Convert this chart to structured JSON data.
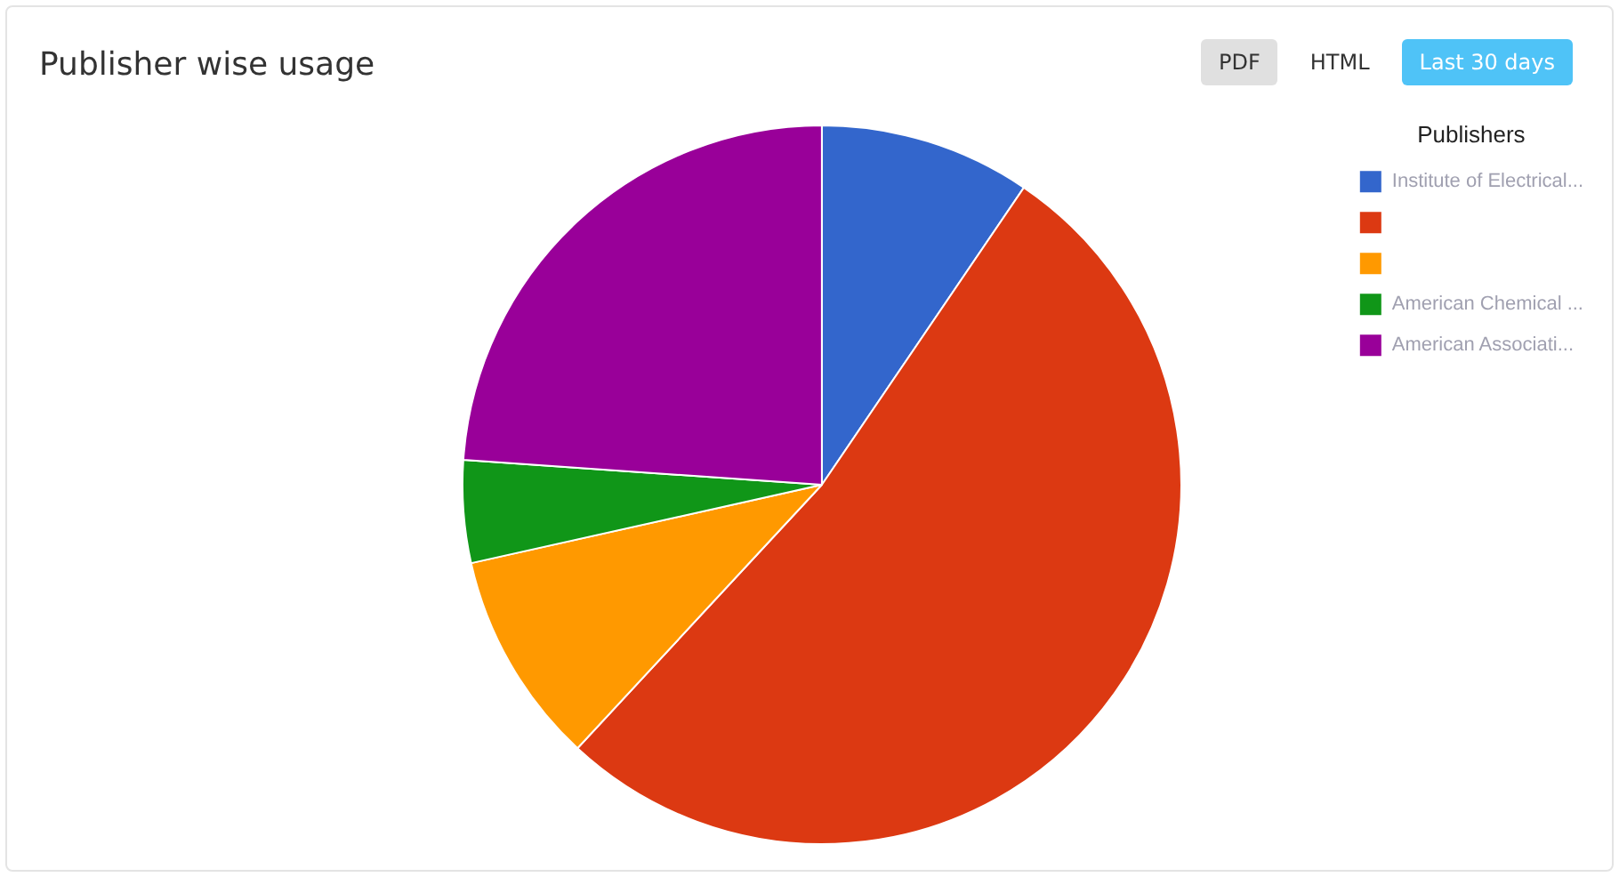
{
  "chart_data": {
    "type": "pie",
    "title": "Publisher wise usage",
    "legend_title": "Publishers",
    "categories": [
      "Institute of Electrical...",
      null,
      null,
      "American Chemical ...",
      "American Associati..."
    ],
    "values": [
      9.5,
      52.4,
      9.6,
      4.6,
      23.9
    ],
    "colors": [
      "#3366cc",
      "#dc3912",
      "#ff9900",
      "#109618",
      "#990099"
    ],
    "legend": "top right",
    "annotations": [
      "PDF",
      "HTML",
      "Last 30 days"
    ]
  }
}
